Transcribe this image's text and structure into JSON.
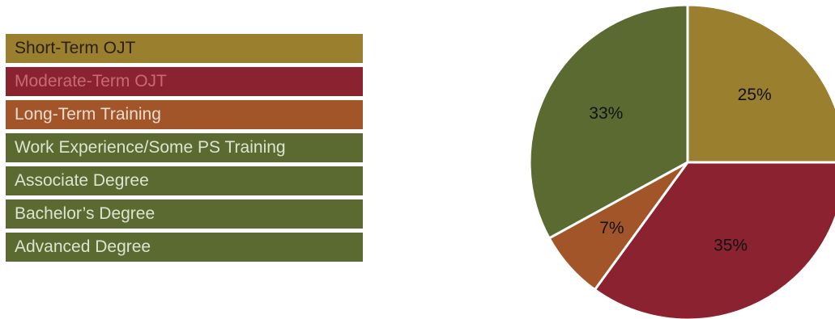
{
  "legend": {
    "items": [
      {
        "label": "Short-Term OJT",
        "color": "#9a7f2f",
        "text_color": "#2a1f08"
      },
      {
        "label": "Moderate-Term OJT",
        "color": "#8b2230",
        "text_color": "#c86a70"
      },
      {
        "label": "Long-Term Training",
        "color": "#a3552a",
        "text_color": "#f1dccd"
      },
      {
        "label": "Work Experience/Some PS Training",
        "color": "#5a6a31",
        "text_color": "#dde4cf"
      },
      {
        "label": "Associate Degree",
        "color": "#5a6a31",
        "text_color": "#dde4cf"
      },
      {
        "label": "Bachelor’s Degree",
        "color": "#5a6a31",
        "text_color": "#dde4cf"
      },
      {
        "label": "Advanced Degree",
        "color": "#5a6a31",
        "text_color": "#dde4cf"
      }
    ]
  },
  "chart_data": {
    "type": "pie",
    "slices": [
      {
        "value": 25,
        "label": "25%",
        "color": "#9a7f2f"
      },
      {
        "value": 35,
        "label": "35%",
        "color": "#8b2230"
      },
      {
        "value": 7,
        "label": "7%",
        "color": "#a3552a"
      },
      {
        "value": 33,
        "label": "33%",
        "color": "#5a6a31"
      }
    ],
    "start_angle_deg": 0,
    "direction": "clockwise",
    "legend_position": "left"
  }
}
